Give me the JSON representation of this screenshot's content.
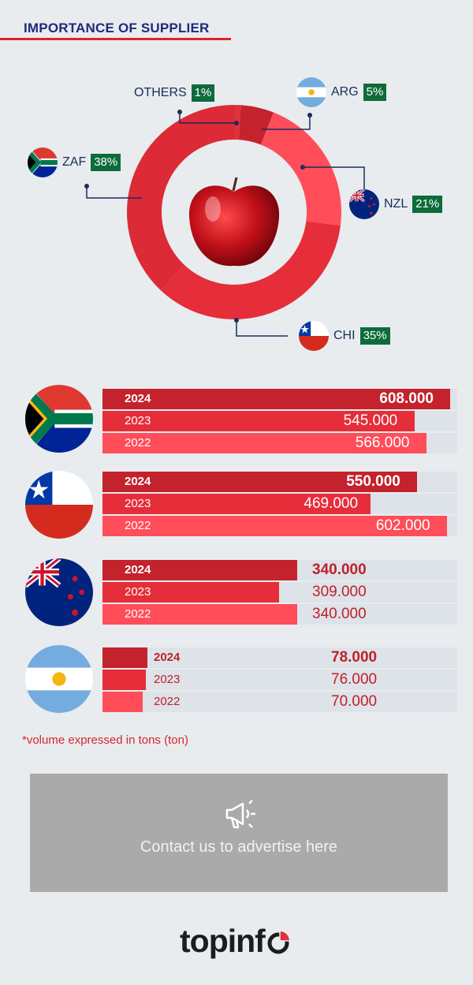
{
  "header": {
    "title": "IMPORTANCE OF SUPPLIER"
  },
  "chart_data": [
    {
      "type": "pie",
      "title": "",
      "slices": [
        {
          "label": "OTHERS",
          "value": 1,
          "pct": "1%",
          "color": "#e0313c"
        },
        {
          "label": "ARG",
          "value": 5,
          "pct": "5%",
          "color": "#c4222c"
        },
        {
          "label": "NZL",
          "value": 21,
          "pct": "21%",
          "color": "#ff4d5a"
        },
        {
          "label": "CHI",
          "value": 35,
          "pct": "35%",
          "color": "#e62d3a"
        },
        {
          "label": "ZAF",
          "value": 38,
          "pct": "38%",
          "color": "#dc2a36"
        }
      ],
      "donut": true,
      "center_image": "apple"
    },
    {
      "type": "bar",
      "orientation": "horizontal",
      "groups": [
        {
          "country": "ZAF",
          "flag": "south-africa",
          "rows": [
            {
              "year": "2024",
              "value": 608000,
              "label": "608.000"
            },
            {
              "year": "2023",
              "value": 545000,
              "label": "545.000"
            },
            {
              "year": "2022",
              "value": 566000,
              "label": "566.000"
            }
          ]
        },
        {
          "country": "CHI",
          "flag": "chile",
          "rows": [
            {
              "year": "2024",
              "value": 550000,
              "label": "550.000"
            },
            {
              "year": "2023",
              "value": 469000,
              "label": "469.000"
            },
            {
              "year": "2022",
              "value": 602000,
              "label": "602.000"
            }
          ]
        },
        {
          "country": "NZL",
          "flag": "new-zealand",
          "rows": [
            {
              "year": "2024",
              "value": 340000,
              "label": "340.000"
            },
            {
              "year": "2023",
              "value": 309000,
              "label": "309.000"
            },
            {
              "year": "2022",
              "value": 340000,
              "label": "340.000"
            }
          ]
        },
        {
          "country": "ARG",
          "flag": "argentina",
          "rows": [
            {
              "year": "2024",
              "value": 78000,
              "label": "78.000"
            },
            {
              "year": "2023",
              "value": 76000,
              "label": "76.000"
            },
            {
              "year": "2022",
              "value": 70000,
              "label": "70.000"
            }
          ]
        }
      ],
      "xlim": [
        0,
        620000
      ],
      "year_colors": {
        "2024": "#c4222c",
        "2023": "#e62d3a",
        "2022": "#ff4d5a"
      }
    }
  ],
  "note": "*volume expressed in tons (ton)",
  "ad": {
    "text": "Contact us to advertise here",
    "icon": "megaphone-icon"
  },
  "logo": {
    "text": "topinf",
    "icon": "pie-o-icon"
  }
}
